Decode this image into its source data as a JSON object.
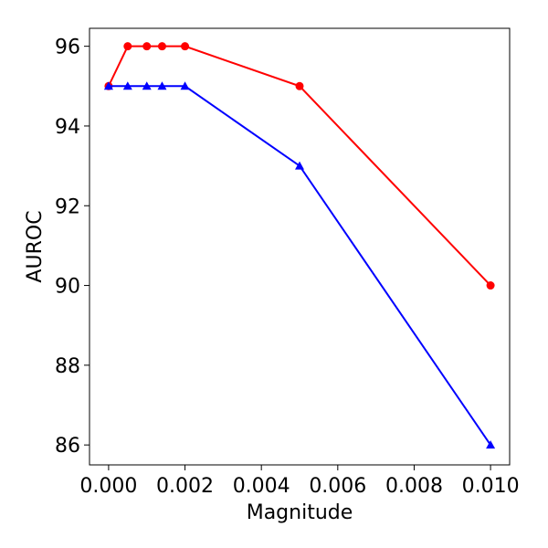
{
  "chart_data": {
    "type": "line",
    "xlabel": "Magnitude",
    "ylabel": "AUROC",
    "xlim": [
      -0.0005,
      0.0105
    ],
    "ylim": [
      85.5,
      96.45
    ],
    "xticks": [
      0.0,
      0.002,
      0.004,
      0.006,
      0.008,
      0.01
    ],
    "xtick_labels": [
      "0.000",
      "0.002",
      "0.004",
      "0.006",
      "0.008",
      "0.010"
    ],
    "yticks": [
      86,
      88,
      90,
      92,
      94,
      96
    ],
    "ytick_labels": [
      "86",
      "88",
      "90",
      "92",
      "94",
      "96"
    ],
    "grid": false,
    "legend": "none",
    "x": [
      0.0,
      0.0005,
      0.001,
      0.0014,
      0.002,
      0.005,
      0.01
    ],
    "series": [
      {
        "color": "#ff0000",
        "marker": "circle",
        "values": [
          95,
          96,
          96,
          96,
          96,
          95,
          90
        ]
      },
      {
        "color": "#0000ff",
        "marker": "triangle",
        "values": [
          95,
          95,
          95,
          95,
          95,
          93,
          86
        ]
      }
    ]
  }
}
